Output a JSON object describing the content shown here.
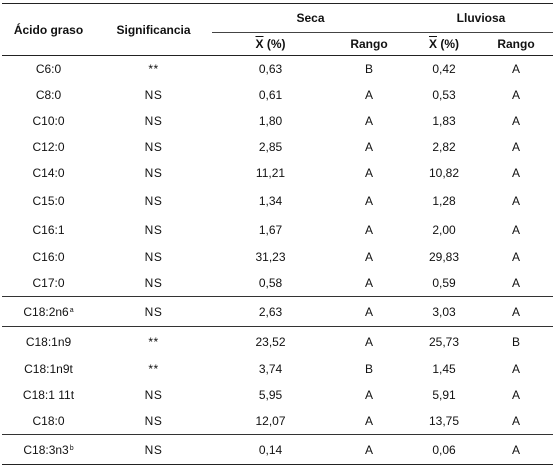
{
  "table": {
    "headers": {
      "fatty_acid": "Ácido graso",
      "significance": "Significancia",
      "group_dry": "Seca",
      "group_rainy": "Lluviosa",
      "mean_symbol": "X",
      "mean_unit": "(%)",
      "rank": "Rango"
    },
    "rows": [
      {
        "acid": "C6:0",
        "sup": "",
        "sig": "**",
        "dry_mean": "0,63",
        "dry_rank": "B",
        "rainy_mean": "0,42",
        "rainy_rank": "A"
      },
      {
        "acid": "C8:0",
        "sup": "",
        "sig": "NS",
        "dry_mean": "0,61",
        "dry_rank": "A",
        "rainy_mean": "0,53",
        "rainy_rank": "A"
      },
      {
        "acid": "C10:0",
        "sup": "",
        "sig": "NS",
        "dry_mean": "1,80",
        "dry_rank": "A",
        "rainy_mean": "1,83",
        "rainy_rank": "A"
      },
      {
        "acid": "C12:0",
        "sup": "",
        "sig": "NS",
        "dry_mean": "2,85",
        "dry_rank": "A",
        "rainy_mean": "2,82",
        "rainy_rank": "A"
      },
      {
        "acid": "C14:0",
        "sup": "",
        "sig": "NS",
        "dry_mean": "11,21",
        "dry_rank": "A",
        "rainy_mean": "10,82",
        "rainy_rank": "A"
      },
      {
        "acid": "C15:0",
        "sup": "",
        "sig": "NS",
        "dry_mean": "1,34",
        "dry_rank": "A",
        "rainy_mean": "1,28",
        "rainy_rank": "A"
      },
      {
        "acid": "C16:1",
        "sup": "",
        "sig": "NS",
        "dry_mean": "1,67",
        "dry_rank": "A",
        "rainy_mean": "2,00",
        "rainy_rank": "A"
      },
      {
        "acid": "C16:0",
        "sup": "",
        "sig": "NS",
        "dry_mean": "31,23",
        "dry_rank": "A",
        "rainy_mean": "29,83",
        "rainy_rank": "A"
      },
      {
        "acid": "C17:0",
        "sup": "",
        "sig": "NS",
        "dry_mean": "0,58",
        "dry_rank": "A",
        "rainy_mean": "0,59",
        "rainy_rank": "A"
      },
      {
        "acid": "C18:2n6",
        "sup": "a",
        "sig": "NS",
        "dry_mean": "2,63",
        "dry_rank": "A",
        "rainy_mean": "3,03",
        "rainy_rank": "A"
      },
      {
        "acid": "C18:1n9",
        "sup": "",
        "sig": "**",
        "dry_mean": "23,52",
        "dry_rank": "A",
        "rainy_mean": "25,73",
        "rainy_rank": "B"
      },
      {
        "acid": "C18:1n9t",
        "sup": "",
        "sig": "**",
        "dry_mean": "3,74",
        "dry_rank": "B",
        "rainy_mean": "1,45",
        "rainy_rank": "A"
      },
      {
        "acid": "C18:1 11t",
        "sup": "",
        "sig": "NS",
        "dry_mean": "5,95",
        "dry_rank": "A",
        "rainy_mean": "5,91",
        "rainy_rank": "A"
      },
      {
        "acid": "C18:0",
        "sup": "",
        "sig": "NS",
        "dry_mean": "12,07",
        "dry_rank": "A",
        "rainy_mean": "13,75",
        "rainy_rank": "A"
      },
      {
        "acid": "C18:3n3",
        "sup": "b",
        "sig": "NS",
        "dry_mean": "0,14",
        "dry_rank": "A",
        "rainy_mean": "0,06",
        "rainy_rank": "A"
      }
    ]
  }
}
